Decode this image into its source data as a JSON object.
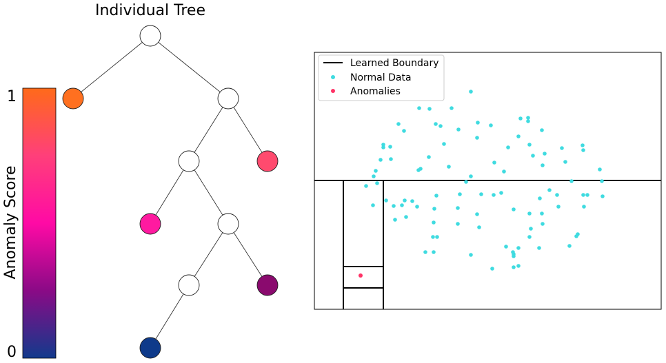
{
  "tree": {
    "title": "Individual Tree",
    "colorbar": {
      "label": "Anomaly Score",
      "max_label": "1",
      "min_label": "0",
      "colors": [
        "#ff6a1a",
        "#ff3f7a",
        "#ff0aa5",
        "#8a0a86",
        "#123a8c"
      ]
    },
    "nodes": [
      {
        "id": "root",
        "fill": "#ffffff"
      },
      {
        "id": "leaf-1",
        "fill": "#ff7020",
        "score": 0.95
      },
      {
        "id": "n2",
        "fill": "#ffffff"
      },
      {
        "id": "n3",
        "fill": "#ffffff"
      },
      {
        "id": "leaf-2",
        "fill": "#ff4a6e",
        "score": 0.78
      },
      {
        "id": "leaf-3",
        "fill": "#ff1aa0",
        "score": 0.55
      },
      {
        "id": "n4",
        "fill": "#ffffff"
      },
      {
        "id": "n5",
        "fill": "#ffffff"
      },
      {
        "id": "leaf-4",
        "fill": "#8a0a6e",
        "score": 0.22
      },
      {
        "id": "leaf-5",
        "fill": "#0e3a8a",
        "score": 0.02
      }
    ]
  },
  "scatter": {
    "legend": {
      "boundary": "Learned Boundary",
      "normal": "Normal Data",
      "anomalies": "Anomalies"
    },
    "colors": {
      "normal": "#3fdbe0",
      "anomaly": "#ff3366",
      "boundary": "#000000"
    }
  }
}
